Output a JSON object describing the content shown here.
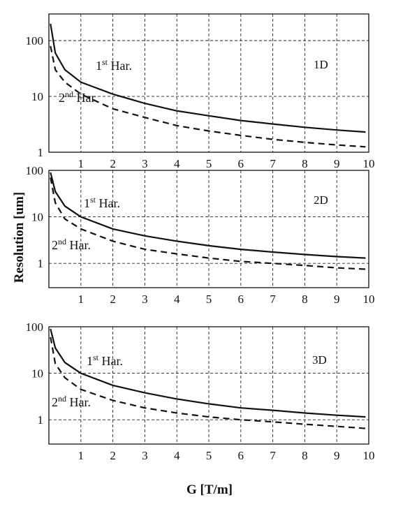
{
  "chart_data": [
    {
      "type": "line",
      "panel_label": "1D",
      "x_ticks": [
        "1",
        "2",
        "3",
        "4",
        "5",
        "6",
        "7",
        "8",
        "9",
        "10"
      ],
      "y_ticks": [
        "1",
        "10",
        "100"
      ],
      "yscale": "log",
      "xlim": [
        0,
        10
      ],
      "ylim": [
        1,
        300
      ],
      "grid": true,
      "series": [
        {
          "name_main": "1",
          "name_sup": "st",
          "name_tail": " Har.",
          "style": "solid",
          "x": [
            0.05,
            0.2,
            0.5,
            1,
            2,
            3,
            4,
            5,
            6,
            7,
            8,
            9,
            9.9
          ],
          "y": [
            200,
            60,
            30,
            18,
            11,
            7.5,
            5.5,
            4.5,
            3.7,
            3.2,
            2.8,
            2.5,
            2.3
          ]
        },
        {
          "name_main": "2",
          "name_sup": "nd",
          "name_tail": " Har.",
          "style": "dashed",
          "x": [
            0.05,
            0.2,
            0.5,
            1,
            2,
            3,
            4,
            5,
            6,
            7,
            8,
            9,
            9.9
          ],
          "y": [
            80,
            30,
            18,
            11,
            6,
            4.2,
            3,
            2.4,
            2,
            1.7,
            1.5,
            1.35,
            1.25
          ]
        }
      ]
    },
    {
      "type": "line",
      "panel_label": "2D",
      "x_ticks": [
        "1",
        "2",
        "3",
        "4",
        "5",
        "6",
        "7",
        "8",
        "9",
        "10"
      ],
      "y_ticks": [
        "1",
        "10",
        "100"
      ],
      "yscale": "log",
      "xlim": [
        0,
        10
      ],
      "ylim": [
        0.3,
        100
      ],
      "grid": true,
      "series": [
        {
          "name_main": "1",
          "name_sup": "st",
          "name_tail": " Har.",
          "style": "solid",
          "x": [
            0.05,
            0.2,
            0.5,
            1,
            2,
            3,
            4,
            5,
            6,
            7,
            8,
            9,
            9.9
          ],
          "y": [
            90,
            35,
            17,
            10,
            5.5,
            3.9,
            3.0,
            2.4,
            2.0,
            1.75,
            1.55,
            1.4,
            1.3
          ]
        },
        {
          "name_main": "2",
          "name_sup": "nd",
          "name_tail": " Har.",
          "style": "dashed",
          "x": [
            0.05,
            0.2,
            0.5,
            1,
            2,
            3,
            4,
            5,
            6,
            7,
            8,
            9,
            9.9
          ],
          "y": [
            70,
            20,
            9,
            5.5,
            3.0,
            2.0,
            1.6,
            1.3,
            1.1,
            1.0,
            0.9,
            0.8,
            0.75
          ]
        }
      ]
    },
    {
      "type": "line",
      "panel_label": "3D",
      "x_ticks": [
        "1",
        "2",
        "3",
        "4",
        "5",
        "6",
        "7",
        "8",
        "9",
        "10"
      ],
      "y_ticks": [
        "1",
        "10",
        "100"
      ],
      "yscale": "log",
      "xlim": [
        0,
        10
      ],
      "ylim": [
        0.3,
        100
      ],
      "grid": true,
      "series": [
        {
          "name_main": "1",
          "name_sup": "st",
          "name_tail": " Har.",
          "style": "solid",
          "x": [
            0.05,
            0.2,
            0.5,
            1,
            2,
            3,
            4,
            5,
            6,
            7,
            8,
            9,
            9.9
          ],
          "y": [
            90,
            35,
            17,
            10,
            5.5,
            3.8,
            2.8,
            2.2,
            1.8,
            1.6,
            1.4,
            1.25,
            1.15
          ]
        },
        {
          "name_main": "2",
          "name_sup": "nd",
          "name_tail": " Har.",
          "style": "dashed",
          "x": [
            0.05,
            0.2,
            0.5,
            1,
            2,
            3,
            4,
            5,
            6,
            7,
            8,
            9,
            9.9
          ],
          "y": [
            60,
            16,
            8,
            4.5,
            2.6,
            1.8,
            1.4,
            1.15,
            1.0,
            0.9,
            0.8,
            0.72,
            0.65
          ]
        }
      ]
    }
  ],
  "ylabel": "Resolution [um]",
  "xlabel": "G [T/m]"
}
